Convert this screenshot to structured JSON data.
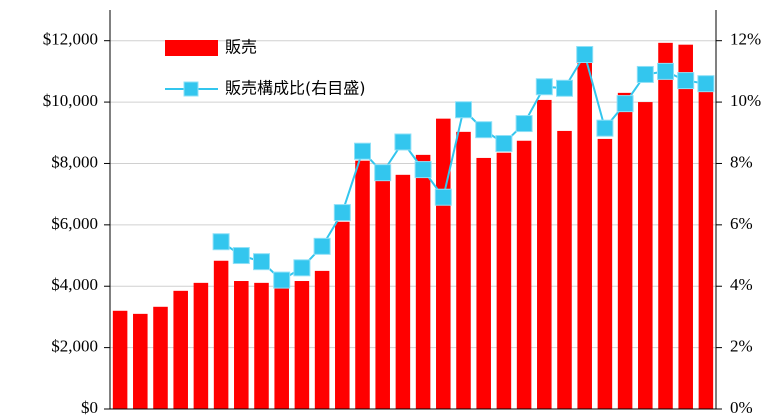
{
  "chart_data": {
    "type": "bar-line",
    "categories": [
      null,
      null,
      null,
      null,
      null,
      null,
      null,
      null,
      null,
      null,
      null,
      null,
      null,
      null,
      null,
      null,
      null,
      null,
      null,
      null,
      null,
      null,
      null,
      null,
      null,
      null,
      null,
      null,
      null,
      null
    ],
    "series": [
      {
        "name": "販売",
        "color": "#ff0000",
        "type": "bar",
        "values": [
          3200,
          3100,
          3330,
          3850,
          4110,
          4830,
          4170,
          4110,
          4000,
          4170,
          4500,
          6100,
          8090,
          7500,
          7630,
          8280,
          9460,
          9030,
          8180,
          8350,
          8740,
          10070,
          9060,
          11300,
          8800,
          10300,
          10000,
          11930,
          11870,
          10400
        ]
      },
      {
        "name": "販売構成比(右目盛)",
        "color": "#33c6ee",
        "type": "line",
        "axis": "y2",
        "values": [
          null,
          null,
          null,
          null,
          null,
          5.45,
          5.0,
          4.8,
          4.2,
          4.6,
          5.3,
          6.4,
          8.4,
          7.7,
          8.7,
          7.8,
          6.9,
          9.75,
          9.1,
          8.65,
          9.3,
          10.5,
          10.45,
          11.55,
          9.15,
          9.95,
          10.9,
          11.0,
          10.7,
          10.6
        ]
      }
    ],
    "ylim": [
      0,
      13000
    ],
    "yticks": [
      {
        "value": 0,
        "label": "$0"
      },
      {
        "value": 2000,
        "label": "$2,000"
      },
      {
        "value": 4000,
        "label": "$4,000"
      },
      {
        "value": 6000,
        "label": "$6,000"
      },
      {
        "value": 8000,
        "label": "$8,000"
      },
      {
        "value": 10000,
        "label": "$10,000"
      },
      {
        "value": 12000,
        "label": "$12,000"
      }
    ],
    "y2lim": [
      0,
      13
    ],
    "y2ticks": [
      {
        "value": 0,
        "label": "0%"
      },
      {
        "value": 2,
        "label": "2%"
      },
      {
        "value": 4,
        "label": "4%"
      },
      {
        "value": 6,
        "label": "6%"
      },
      {
        "value": 8,
        "label": "8%"
      },
      {
        "value": 10,
        "label": "10%"
      },
      {
        "value": 12,
        "label": "12%"
      }
    ],
    "grid": true,
    "legend": "top-left"
  }
}
